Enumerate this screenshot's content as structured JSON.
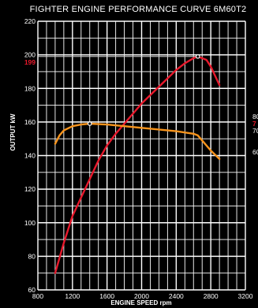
{
  "chart_data": {
    "type": "line",
    "title": "FIGHTER ENGINE PERFORMANCE CURVE 6M60T2",
    "xlabel": "ENGINE SPEED rpm",
    "ylabel": "OUTPUT kW",
    "xlim": [
      800,
      3200
    ],
    "ylim": [
      60,
      220
    ],
    "x_ticks": [
      800,
      1200,
      1600,
      2000,
      2400,
      2800,
      3200
    ],
    "y_ticks": [
      60,
      80,
      100,
      120,
      140,
      160,
      180,
      200,
      220
    ],
    "grid": true,
    "series": [
      {
        "color": "#e8192c",
        "x": [
          1000,
          1100,
          1200,
          1300,
          1400,
          1500,
          1600,
          1700,
          1800,
          1900,
          2000,
          2100,
          2200,
          2300,
          2400,
          2500,
          2600,
          2650,
          2700,
          2750,
          2800,
          2900
        ],
        "y": [
          70,
          88,
          104,
          115,
          126,
          137,
          146,
          153,
          159,
          165,
          171,
          176,
          181,
          186,
          191,
          195,
          198,
          199,
          198,
          197,
          193,
          182
        ]
      },
      {
        "color": "#f7941d",
        "x": [
          1000,
          1050,
          1100,
          1200,
          1300,
          1400,
          1600,
          1800,
          2000,
          2200,
          2400,
          2600,
          2650,
          2700,
          2800,
          2900
        ],
        "y": [
          147,
          152,
          155,
          157.5,
          158.5,
          159,
          158.5,
          157.5,
          156.5,
          155.5,
          154.5,
          153,
          152,
          149,
          143,
          138
        ]
      }
    ],
    "annotations": {
      "max_output_label": "199",
      "max_output_value": 199,
      "max_torque_point": {
        "x": 1400,
        "y": 159
      },
      "max_output_point": {
        "x": 2650,
        "y": 199
      },
      "right_edge_labels": [
        "80",
        "7",
        "70",
        "60"
      ]
    }
  }
}
